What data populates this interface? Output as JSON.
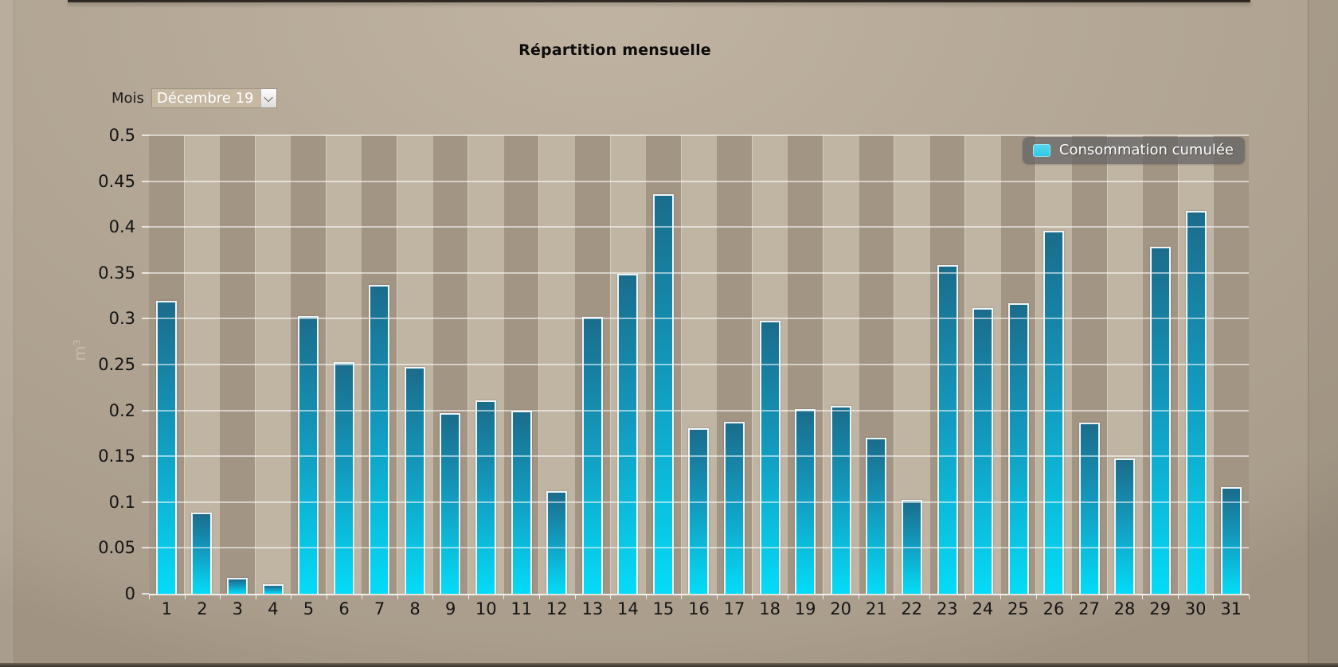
{
  "page": {
    "title": "Répartition mensuelle"
  },
  "controls": {
    "month_label": "Mois",
    "month_value": "Décembre 19"
  },
  "legend": {
    "label": "Consommation cumulée"
  },
  "colors": {
    "bar_gradient_top": "#1b6c8b",
    "bar_gradient_mid": "#1399bd",
    "bar_gradient_bottom": "#04dcf8",
    "legend_swatch": "#2cc9e6",
    "stripe_dark": "#a39584",
    "stripe_light": "#c0b5a3"
  },
  "chart_data": {
    "type": "bar",
    "title": "Répartition mensuelle",
    "xlabel": "",
    "ylabel": "m³",
    "ylim": [
      0,
      0.5
    ],
    "grid": true,
    "legend_position": "top-right",
    "y_ticks": [
      "0",
      "0.05",
      "0.1",
      "0.15",
      "0.2",
      "0.25",
      "0.3",
      "0.35",
      "0.4",
      "0.45",
      "0.5"
    ],
    "categories": [
      1,
      2,
      3,
      4,
      5,
      6,
      7,
      8,
      9,
      10,
      11,
      12,
      13,
      14,
      15,
      16,
      17,
      18,
      19,
      20,
      21,
      22,
      23,
      24,
      25,
      26,
      27,
      28,
      29,
      30,
      31
    ],
    "series": [
      {
        "name": "Consommation cumulée",
        "values": [
          0.318,
          0.087,
          0.016,
          0.009,
          0.301,
          0.251,
          0.335,
          0.246,
          0.195,
          0.209,
          0.198,
          0.11,
          0.3,
          0.347,
          0.434,
          0.179,
          0.186,
          0.296,
          0.2,
          0.203,
          0.168,
          0.101,
          0.357,
          0.31,
          0.315,
          0.394,
          0.185,
          0.146,
          0.377,
          0.416,
          0.115
        ]
      }
    ]
  }
}
